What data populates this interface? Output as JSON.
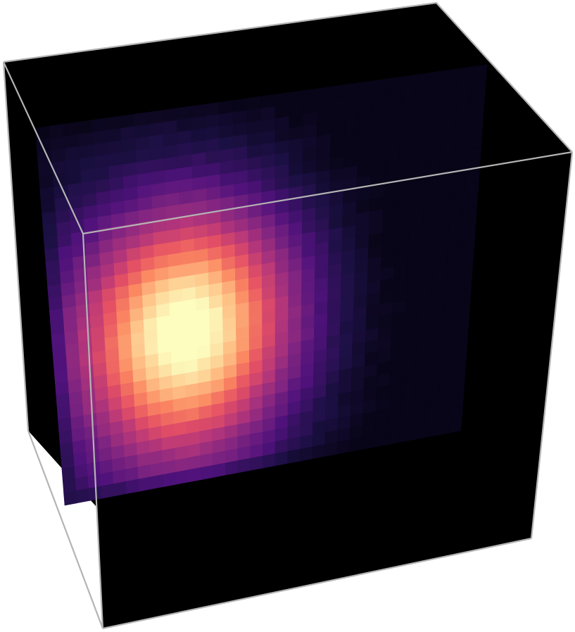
{
  "scene": {
    "type": "3d-volume-render",
    "colormap": "magma",
    "background_color": "#ffffff",
    "box_fill_color": "#000000",
    "box_edge_color": "#b4b4b4",
    "slice_grid": {
      "cols": 32,
      "rows": 31
    },
    "hotspot": {
      "u": 0.32,
      "v": 0.6,
      "spread_u": 0.18,
      "spread_v": 0.23,
      "peak": 1.0
    },
    "halo_strength": 0.12,
    "colors": {
      "magma_stops": [
        "#000004",
        "#1c1044",
        "#4f127b",
        "#812581",
        "#b5367a",
        "#e55064",
        "#fb8761",
        "#fec287",
        "#fcfdbf"
      ]
    }
  }
}
